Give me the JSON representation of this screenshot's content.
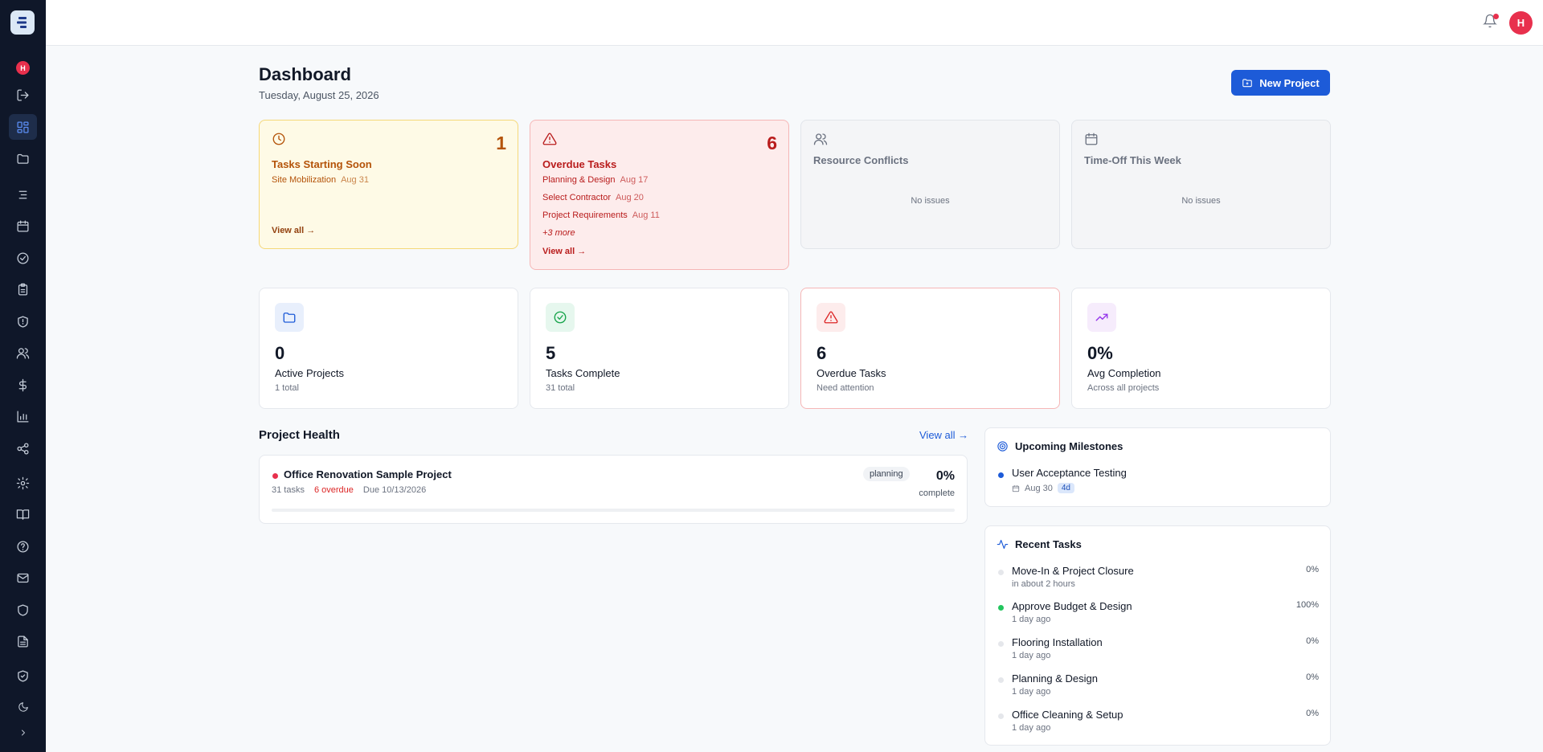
{
  "user": {
    "initial": "H"
  },
  "header": {
    "title": "Dashboard",
    "date": "Tuesday, August 25, 2026",
    "new_project_label": "New Project"
  },
  "alerts": {
    "starting_soon": {
      "count": "1",
      "title": "Tasks Starting Soon",
      "items": [
        {
          "name": "Site Mobilization",
          "date": "Aug 31"
        }
      ],
      "link": "View all →"
    },
    "overdue": {
      "count": "6",
      "title": "Overdue Tasks",
      "items": [
        {
          "name": "Planning & Design",
          "date": "Aug 17"
        },
        {
          "name": "Select Contractor",
          "date": "Aug 20"
        },
        {
          "name": "Project Requirements",
          "date": "Aug 11"
        }
      ],
      "more": "+3 more",
      "link": "View all →"
    },
    "resource_conflicts": {
      "title": "Resource Conflicts",
      "empty": "No issues"
    },
    "time_off": {
      "title": "Time-Off This Week",
      "empty": "No issues"
    }
  },
  "stats": [
    {
      "value": "0",
      "label": "Active Projects",
      "sub": "1 total"
    },
    {
      "value": "5",
      "label": "Tasks Complete",
      "sub": "31 total"
    },
    {
      "value": "6",
      "label": "Overdue Tasks",
      "sub": "Need attention"
    },
    {
      "value": "0%",
      "label": "Avg Completion",
      "sub": "Across all projects"
    }
  ],
  "project_health": {
    "title": "Project Health",
    "view_all": "View all →",
    "project": {
      "name": "Office Renovation Sample Project",
      "tasks": "31 tasks",
      "overdue": "6 overdue",
      "due": "Due 10/13/2026",
      "status": "planning",
      "percent": "0%",
      "percent_label": "complete",
      "progress_fraction": 0
    }
  },
  "milestones": {
    "title": "Upcoming Milestones",
    "items": [
      {
        "name": "User Acceptance Testing",
        "date": "Aug 30",
        "badge": "4d"
      }
    ]
  },
  "recent_tasks": {
    "title": "Recent Tasks",
    "items": [
      {
        "name": "Move-In & Project Closure",
        "time": "in about 2 hours",
        "percent": "0%"
      },
      {
        "name": "Approve Budget & Design",
        "time": "1 day ago",
        "percent": "100%"
      },
      {
        "name": "Flooring Installation",
        "time": "1 day ago",
        "percent": "0%"
      },
      {
        "name": "Planning & Design",
        "time": "1 day ago",
        "percent": "0%"
      },
      {
        "name": "Office Cleaning & Setup",
        "time": "1 day ago",
        "percent": "0%"
      }
    ]
  },
  "colors": {
    "accent": "#1d5bd8",
    "danger": "#dc2626",
    "warning": "#b45309",
    "success": "#22c55e",
    "sidebar": "#0f1729"
  },
  "icons": {
    "sidebar": [
      "logout-icon",
      "dashboard-icon",
      "folder-icon",
      "list-icon",
      "calendar-icon",
      "check-circle-icon",
      "clipboard-icon",
      "shield-icon",
      "users-icon",
      "dollar-icon",
      "bar-chart-icon",
      "share-icon",
      "gear-icon",
      "book-icon",
      "help-icon",
      "mail-icon",
      "shield-icon",
      "document-icon",
      "shield-check-icon",
      "moon-icon",
      "chevron-right-icon"
    ]
  }
}
